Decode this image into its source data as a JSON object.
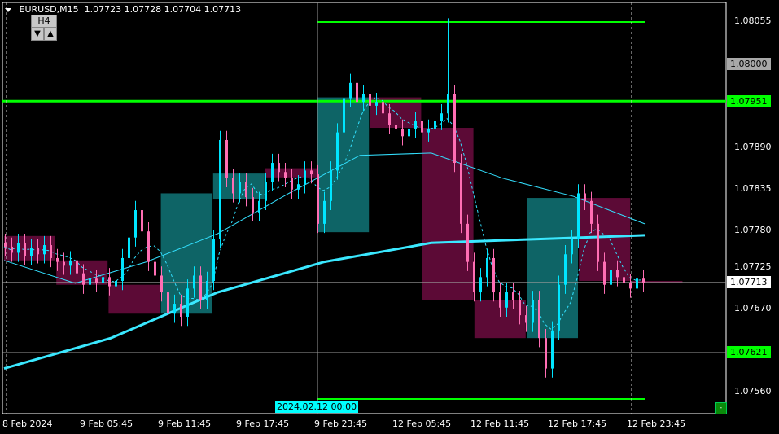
{
  "header": {
    "symbol": "EURUSD,M15",
    "open": "1.07723",
    "high": "1.07728",
    "low": "1.07704",
    "close": "1.07713"
  },
  "timeframe_widget": {
    "label": "H4",
    "down": "▼",
    "up": "▲"
  },
  "price_axis": {
    "ticks": [
      "1.08055",
      "1.07890",
      "1.07835",
      "1.07780",
      "1.07725",
      "1.07670",
      "1.07560"
    ],
    "labels": {
      "grid_level": "1.08000",
      "upper_line": "1.07951",
      "current": "1.07713",
      "lower_line": "1.07621"
    }
  },
  "time_axis": {
    "labels": [
      "8 Feb 2024",
      "9 Feb 05:45",
      "9 Feb 11:45",
      "9 Feb 17:45",
      "9 Feb 23:45",
      "12 Feb 05:45",
      "12 Feb 11:45",
      "12 Feb 17:45",
      "12 Feb 23:45"
    ],
    "crosshair": "2024.02.12 00:00"
  },
  "mini_button": "-",
  "colors": {
    "bull": "#00e5ff",
    "bear": "#ff6eb4",
    "bull_box": "#0e6466",
    "bear_box": "#5c0a36",
    "line_green": "#00ff00",
    "ma": "#33e0ff",
    "ma_slow": "#3ae8ff"
  },
  "chart_data": {
    "type": "candlestick",
    "symbol": "EURUSD",
    "timeframe": "M15",
    "ylim": [
      1.0752,
      1.0808
    ],
    "closes": [
      1.0776,
      1.07752,
      1.07765,
      1.07748,
      1.07758,
      1.0775,
      1.07762,
      1.07745,
      1.0774,
      1.07735,
      1.07742,
      1.07725,
      1.0771,
      1.07718,
      1.07712,
      1.0772,
      1.07708,
      1.07715,
      1.07745,
      1.07772,
      1.07808,
      1.0778,
      1.0774,
      1.07722,
      1.077,
      1.07672,
      1.07685,
      1.07668,
      1.07705,
      1.07722,
      1.0769,
      1.07715,
      1.0777,
      1.079,
      1.0785,
      1.0783,
      1.07845,
      1.07825,
      1.07805,
      1.0782,
      1.07845,
      1.0787,
      1.07858,
      1.0785,
      1.07835,
      1.07842,
      1.0786,
      1.07855,
      1.0779,
      1.0782,
      1.0786,
      1.0791,
      1.07955,
      1.07975,
      1.0795,
      1.0796,
      1.07945,
      1.0795,
      1.07935,
      1.0792,
      1.07915,
      1.07905,
      1.07915,
      1.07925,
      1.0791,
      1.07915,
      1.07925,
      1.07935,
      1.0796,
      1.0787,
      1.0779,
      1.0774,
      1.077,
      1.0772,
      1.07745,
      1.077,
      1.0768,
      1.077,
      1.0769,
      1.0767,
      1.0766,
      1.0769,
      1.0764,
      1.076,
      1.0765,
      1.0771,
      1.0775,
      1.0777,
      1.0783,
      1.0782,
      1.0779,
      1.0774,
      1.0771,
      1.0773,
      1.0772,
      1.07712,
      1.07705,
      1.07718,
      1.07713
    ],
    "spike_high": 1.0806,
    "h4_boxes": [
      {
        "open": 1.07774,
        "close": 1.07742,
        "dir": "bear"
      },
      {
        "open": 1.07742,
        "close": 1.0771,
        "dir": "bear"
      },
      {
        "open": 1.0771,
        "close": 1.07672,
        "dir": "bear"
      },
      {
        "open": 1.07672,
        "close": 1.0783,
        "dir": "bull"
      },
      {
        "open": 1.07822,
        "close": 1.07856,
        "dir": "bull"
      },
      {
        "open": 1.07863,
        "close": 1.07851,
        "dir": "bear"
      },
      {
        "open": 1.07779,
        "close": 1.07956,
        "dir": "bull"
      },
      {
        "open": 1.07956,
        "close": 1.07916,
        "dir": "bear"
      },
      {
        "open": 1.07916,
        "close": 1.0769,
        "dir": "bear"
      },
      {
        "open": 1.0769,
        "close": 1.0764,
        "dir": "bear"
      },
      {
        "open": 1.0764,
        "close": 1.07824,
        "dir": "bull"
      },
      {
        "open": 1.07824,
        "close": 1.07715,
        "dir": "bear"
      },
      {
        "open": 1.07715,
        "close": 1.07712,
        "dir": "bear"
      }
    ],
    "ma_medium": [
      1.07742,
      1.07712,
      1.0774,
      1.07777,
      1.0783,
      1.0788,
      1.07883,
      1.0785,
      1.07826,
      1.0779
    ],
    "ma_slow": [
      1.076,
      1.0764,
      1.077,
      1.0774,
      1.07765,
      1.0777,
      1.07775
    ],
    "levels": {
      "upper": 1.07951,
      "lower": 1.07621,
      "top_short": 1.08055,
      "bottom_short": 1.0756,
      "grid": 1.08,
      "current": 1.07713
    }
  }
}
